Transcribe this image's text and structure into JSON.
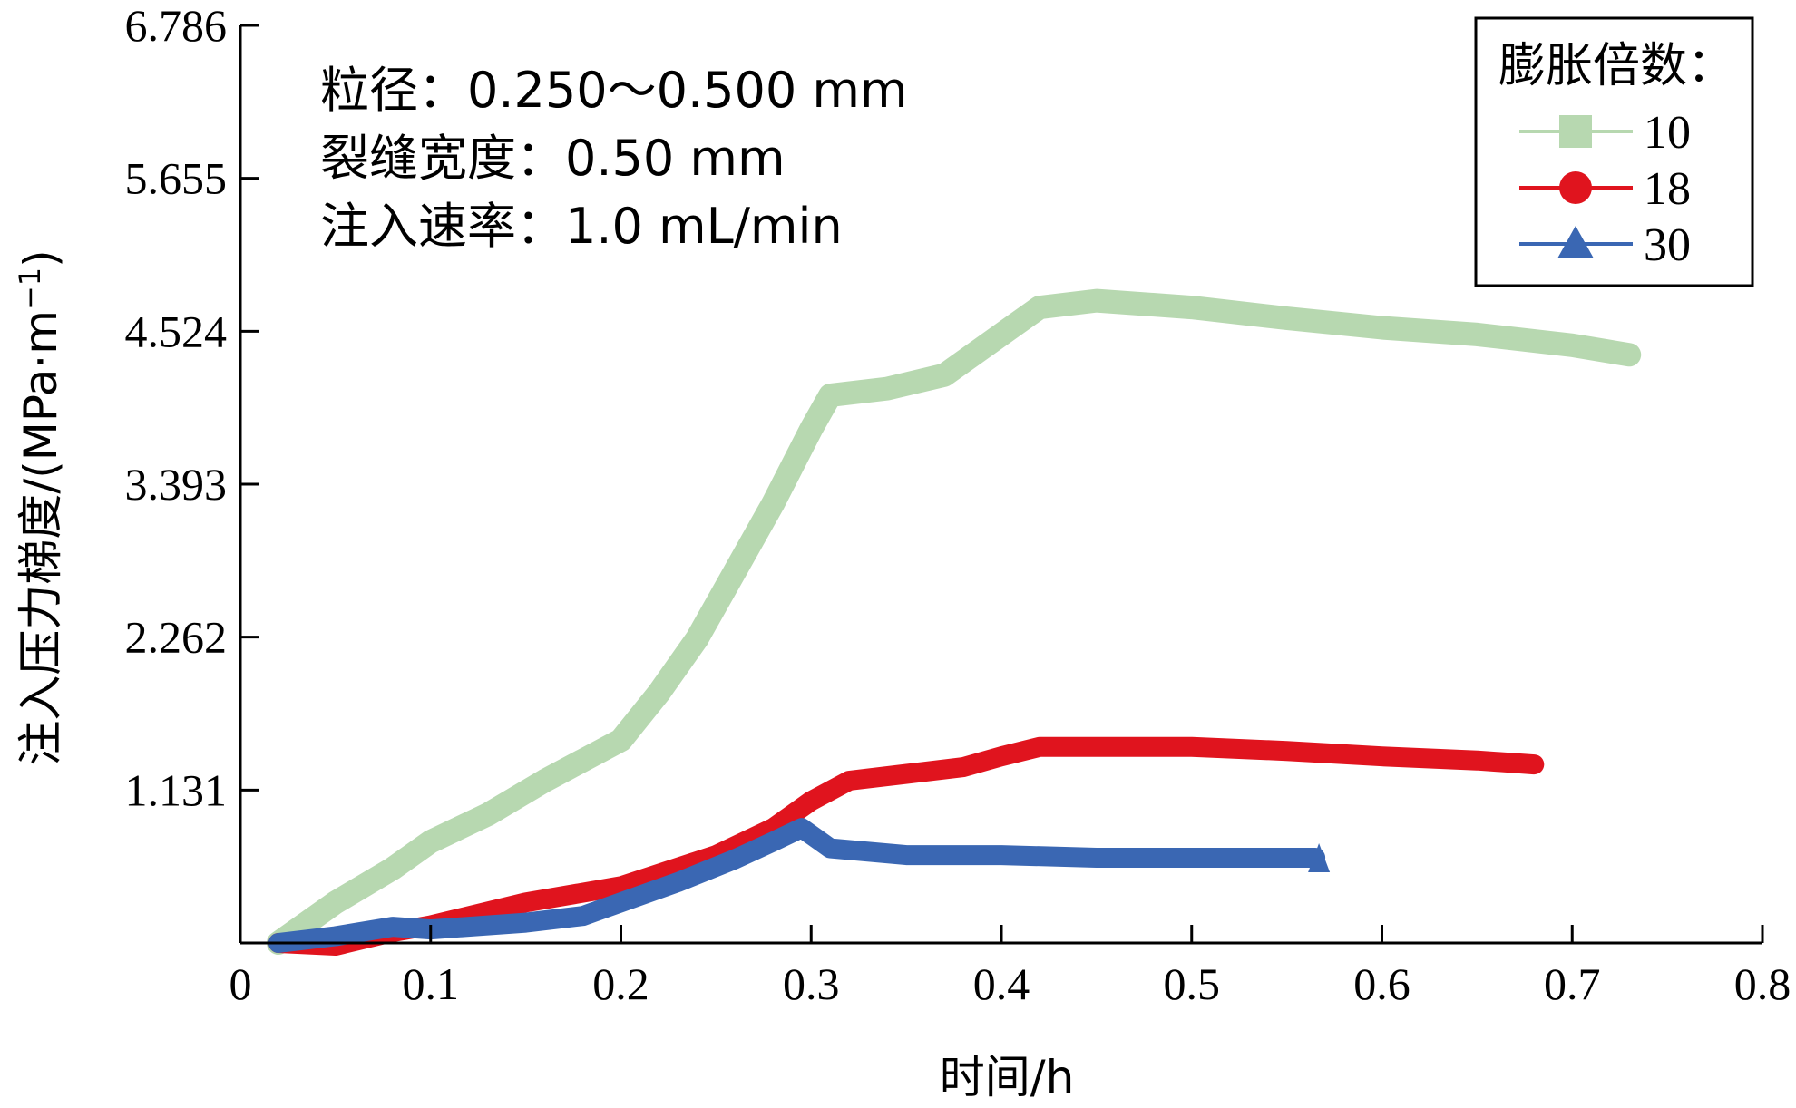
{
  "chart_data": {
    "type": "line",
    "xlabel": "时间/h",
    "ylabel": "注入压力梯度/(MPa·m",
    "ylabel_sup": "−1",
    "ylabel_close": ")",
    "xlim": [
      0,
      0.8
    ],
    "ylim": [
      0,
      6.786
    ],
    "x_ticks": [
      "0",
      "0.1",
      "0.2",
      "0.3",
      "0.4",
      "0.5",
      "0.6",
      "0.7",
      "0.8"
    ],
    "y_ticks": [
      "1.131",
      "2.262",
      "3.393",
      "4.524",
      "5.655",
      "6.786"
    ],
    "grid": false,
    "annotations": [
      "粒径：0.250～0.500 mm",
      "裂缝宽度：0.50 mm",
      "注入速率：1.0 mL/min"
    ],
    "legend": {
      "title": "膨胀倍数：",
      "position": "top-right"
    },
    "series": [
      {
        "name": "10",
        "color": "#b7d8b0",
        "marker": "square",
        "points": [
          [
            0.02,
            0.0
          ],
          [
            0.05,
            0.3
          ],
          [
            0.08,
            0.55
          ],
          [
            0.1,
            0.75
          ],
          [
            0.13,
            0.95
          ],
          [
            0.16,
            1.2
          ],
          [
            0.18,
            1.35
          ],
          [
            0.2,
            1.5
          ],
          [
            0.22,
            1.85
          ],
          [
            0.24,
            2.25
          ],
          [
            0.26,
            2.75
          ],
          [
            0.28,
            3.25
          ],
          [
            0.3,
            3.8
          ],
          [
            0.31,
            4.05
          ],
          [
            0.34,
            4.1
          ],
          [
            0.37,
            4.2
          ],
          [
            0.4,
            4.5
          ],
          [
            0.42,
            4.7
          ],
          [
            0.45,
            4.75
          ],
          [
            0.5,
            4.7
          ],
          [
            0.55,
            4.62
          ],
          [
            0.6,
            4.55
          ],
          [
            0.65,
            4.5
          ],
          [
            0.7,
            4.42
          ],
          [
            0.73,
            4.35
          ]
        ]
      },
      {
        "name": "18",
        "color": "#e0141e",
        "marker": "circle",
        "points": [
          [
            0.02,
            0.0
          ],
          [
            0.05,
            -0.02
          ],
          [
            0.08,
            0.08
          ],
          [
            0.1,
            0.13
          ],
          [
            0.15,
            0.3
          ],
          [
            0.2,
            0.42
          ],
          [
            0.25,
            0.65
          ],
          [
            0.28,
            0.85
          ],
          [
            0.3,
            1.05
          ],
          [
            0.32,
            1.2
          ],
          [
            0.35,
            1.25
          ],
          [
            0.38,
            1.3
          ],
          [
            0.4,
            1.38
          ],
          [
            0.42,
            1.45
          ],
          [
            0.5,
            1.45
          ],
          [
            0.55,
            1.42
          ],
          [
            0.6,
            1.38
          ],
          [
            0.65,
            1.35
          ],
          [
            0.68,
            1.32
          ]
        ]
      },
      {
        "name": "30",
        "color": "#3a67b3",
        "marker": "triangle",
        "points": [
          [
            0.02,
            0.0
          ],
          [
            0.05,
            0.05
          ],
          [
            0.08,
            0.12
          ],
          [
            0.1,
            0.1
          ],
          [
            0.15,
            0.15
          ],
          [
            0.18,
            0.2
          ],
          [
            0.2,
            0.3
          ],
          [
            0.23,
            0.45
          ],
          [
            0.26,
            0.62
          ],
          [
            0.28,
            0.75
          ],
          [
            0.295,
            0.85
          ],
          [
            0.31,
            0.7
          ],
          [
            0.35,
            0.65
          ],
          [
            0.4,
            0.65
          ],
          [
            0.45,
            0.63
          ],
          [
            0.5,
            0.63
          ],
          [
            0.55,
            0.63
          ],
          [
            0.565,
            0.63
          ]
        ]
      }
    ]
  }
}
